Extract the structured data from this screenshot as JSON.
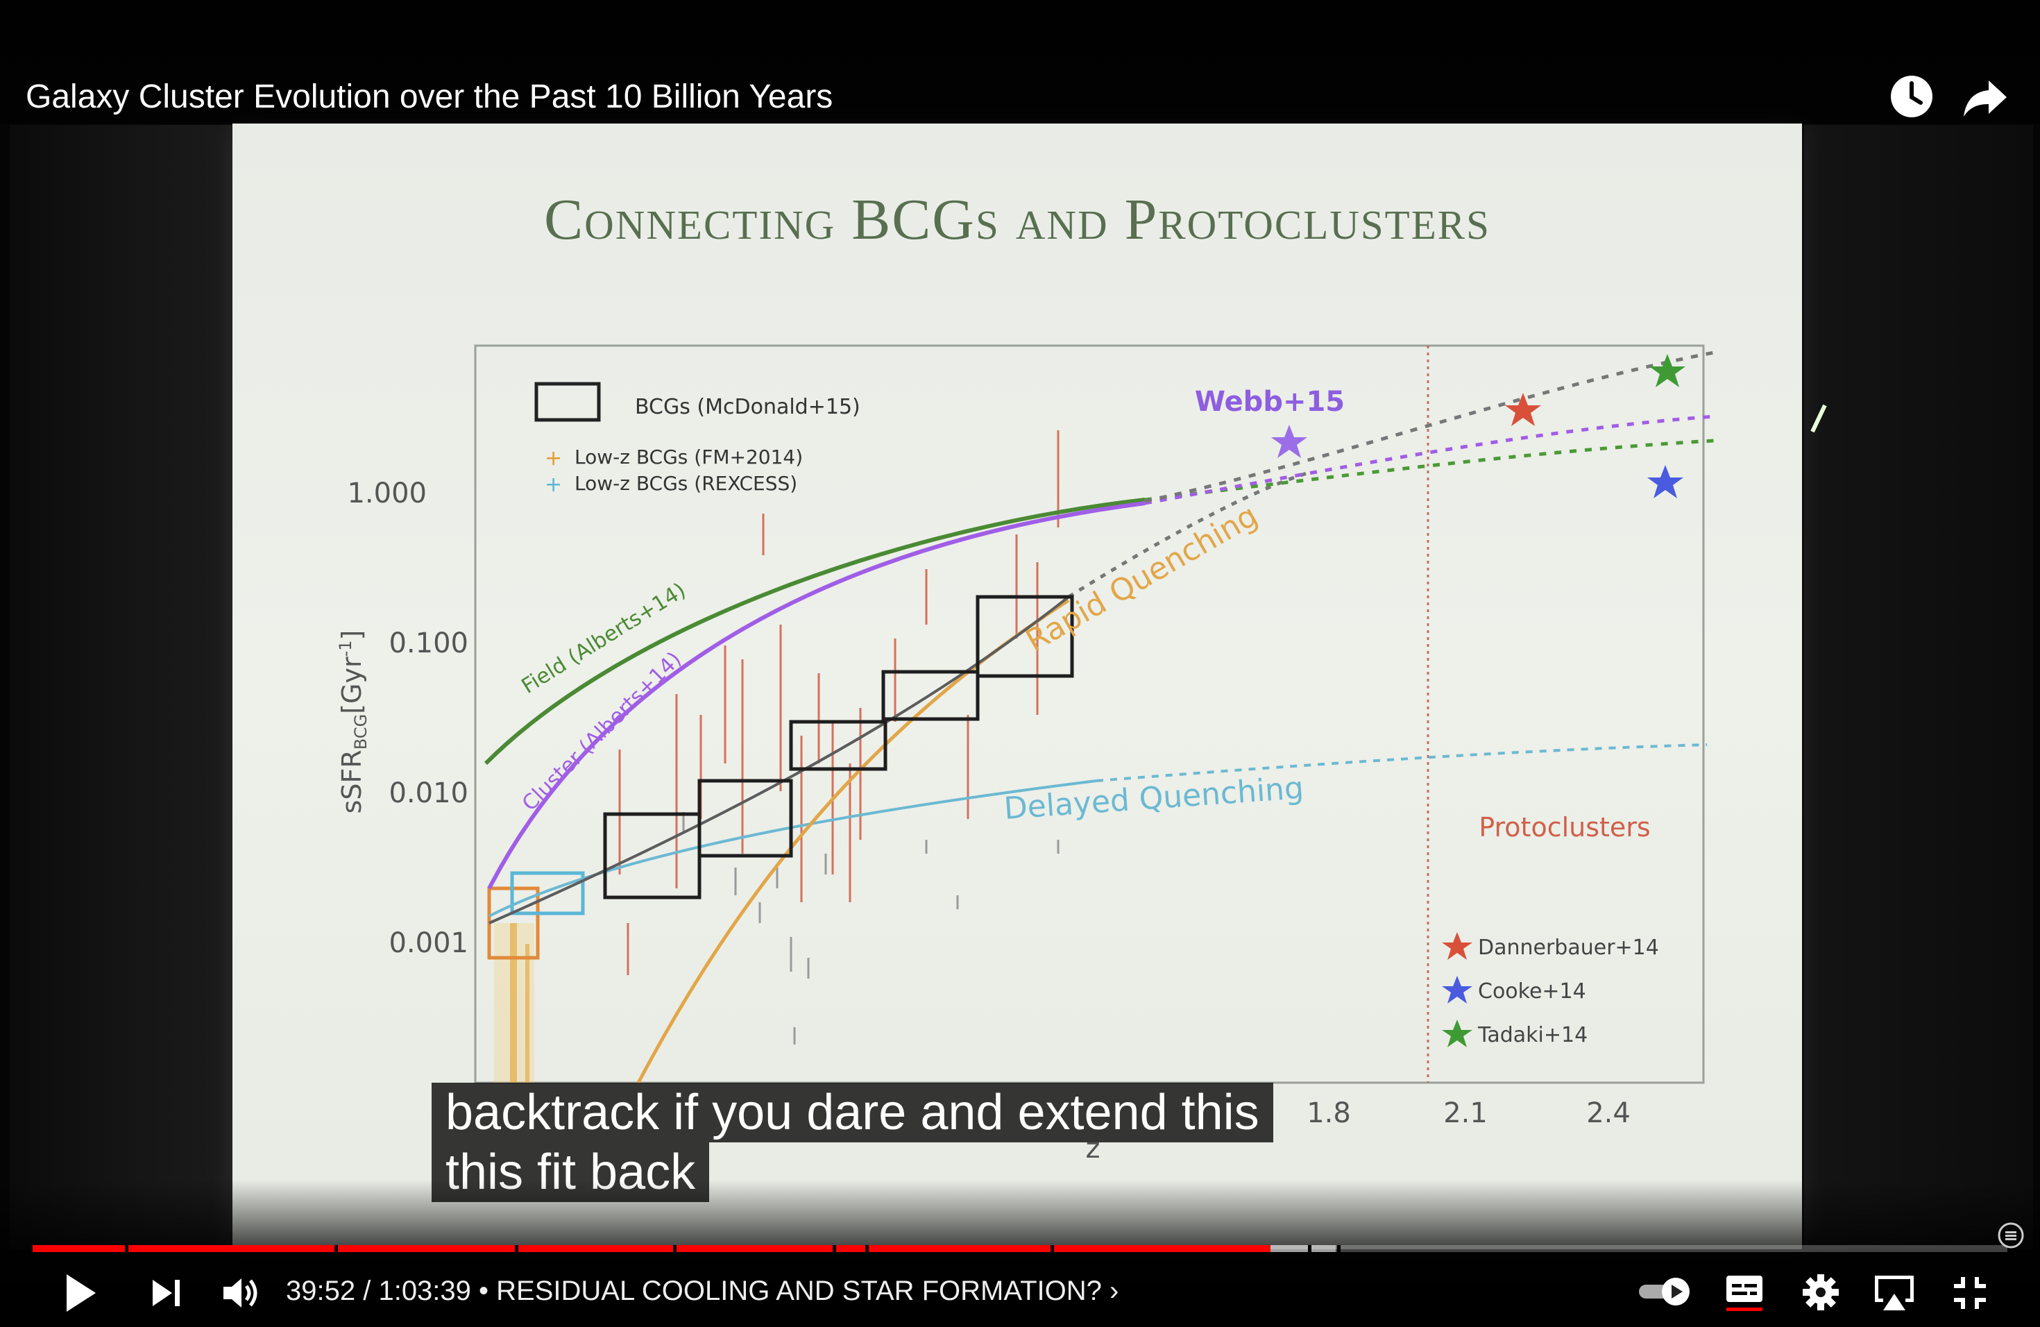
{
  "video": {
    "title": "Galaxy Cluster Evolution over the Past 10 Billion Years"
  },
  "slide": {
    "title": "Connecting BCGs and Protoclusters"
  },
  "chart_data": {
    "type": "scatter",
    "ylabel": "sSFR",
    "ylabel_sub": "BCG",
    "ylabel_unit": "[Gyr",
    "ylabel_sup": "-1",
    "ylabel_close": "]",
    "xlabel": "z",
    "y_scale": "log",
    "y_ticks": [
      "1.000",
      "0.100",
      "0.010",
      "0.001"
    ],
    "x_ticks_visible": [
      "1.8",
      "2.1",
      "2.4"
    ],
    "legend": [
      {
        "label": "BCGs (McDonald+15)",
        "marker": "box",
        "color": "#1a1a1a"
      },
      {
        "label": "Low-z BCGs (FM+2014)",
        "marker": "plus",
        "color": "#e39b2f"
      },
      {
        "label": "Low-z BCGs (REXCESS)",
        "marker": "plus",
        "color": "#5bb6d6"
      }
    ],
    "curve_labels": {
      "field": "Field (Alberts+14)",
      "cluster": "Cluster (Alberts+14)",
      "rapid": "Rapid Quenching",
      "delayed": "Delayed Quenching",
      "webb": "Webb+15",
      "protoclusters": "Protoclusters"
    },
    "protocluster_legend": [
      {
        "label": "Dannerbauer+14",
        "color": "#d9503a"
      },
      {
        "label": "Cooke+14",
        "color": "#4a5be0"
      },
      {
        "label": "Tadaki+14",
        "color": "#3f9a35"
      }
    ],
    "bcg_boxes": [
      {
        "z": 0.45,
        "ssfr": 0.003
      },
      {
        "z": 0.7,
        "ssfr": 0.006
      },
      {
        "z": 0.95,
        "ssfr": 0.012
      },
      {
        "z": 1.2,
        "ssfr": 0.025
      },
      {
        "z": 1.45,
        "ssfr": 0.05
      }
    ]
  },
  "caption": {
    "line1": "backtrack if you dare and extend this",
    "line2": "this fit back"
  },
  "player": {
    "current_time": "39:52",
    "separator": " / ",
    "duration": "1:03:39",
    "chapter": " • RESIDUAL COOLING AND STAR FORMATION? ›",
    "progress_fraction": 0.627,
    "buffer_fraction": 0.66,
    "icons": {
      "play": "play-icon",
      "next": "next-icon",
      "volume": "volume-icon",
      "autoplay": "autoplay-toggle-icon",
      "subtitles": "subtitles-icon",
      "settings": "settings-gear-icon",
      "airplay": "airplay-icon",
      "exit_fullscreen": "exit-fullscreen-icon",
      "watch_later": "watch-later-clock-icon",
      "share": "share-arrow-icon"
    },
    "colors": {
      "progress": "#ff0000",
      "accent_subtitles": "#ff0000"
    }
  }
}
